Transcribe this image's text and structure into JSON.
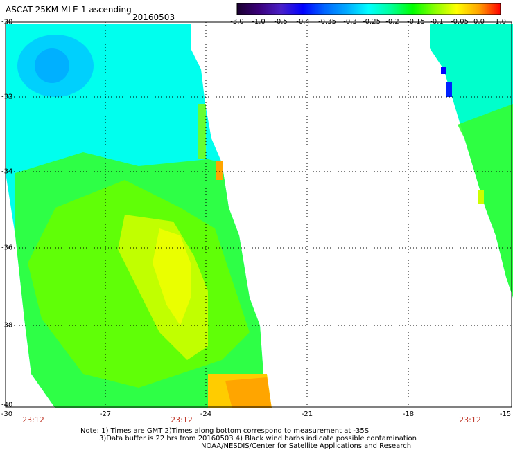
{
  "header": {
    "title": "ASCAT 25KM MLE-1 ascending",
    "date": "20160503"
  },
  "colorbar": {
    "tick_labels": [
      "-3.0",
      "-1.0",
      "-0.5",
      "-0.4",
      "-0.35",
      "-0.3",
      "-0.25",
      "-0.2",
      "-0.15",
      "-0.1",
      "-0.05",
      "0.0",
      "1.0"
    ],
    "colors": [
      "#1a0030",
      "#3a007a",
      "#4a20c8",
      "#0000ff",
      "#0066ff",
      "#00aaff",
      "#00ffff",
      "#00ff99",
      "#00ff00",
      "#88ff00",
      "#ffff00",
      "#ffa500",
      "#ff0000"
    ]
  },
  "map": {
    "lat_labels": [
      "-30",
      "-32",
      "-34",
      "-36",
      "-38",
      "-40"
    ],
    "lon_labels": [
      "-30",
      "-27",
      "-24",
      "-21",
      "-18",
      "-15"
    ],
    "time_labels": [
      "23:12",
      "23:12",
      "23:12"
    ]
  },
  "notes": [
    "Note: 1) Times are GMT 2)Times along bottom correspond to measurement at -35S",
    "3)Data buffer is 22 hrs from 20160503 4) Black wind barbs indicate possible contamination",
    "NOAA/NESDIS/Center for Satellite Applications and Research"
  ]
}
